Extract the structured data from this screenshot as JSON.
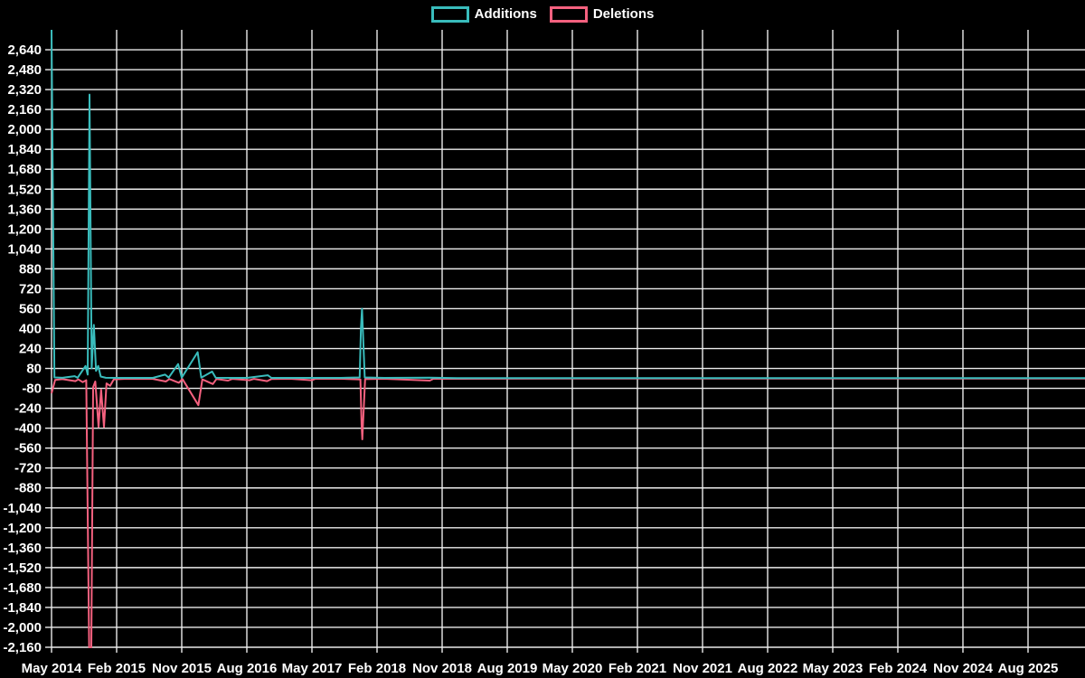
{
  "legend": [
    {
      "label": "Additions"
    },
    {
      "label": "Deletions"
    }
  ],
  "chart_data": {
    "type": "line",
    "title": "",
    "xlabel": "",
    "ylabel": "",
    "legend_position": "top",
    "grid": true,
    "background_color": "#000000",
    "gridline_color": "#ebebeb",
    "text_color": "#ffffff",
    "x_axis": {
      "unit": "months since first tick",
      "tick_months": [
        0,
        9,
        18,
        27,
        36,
        45,
        54,
        63,
        72,
        81,
        90,
        99,
        108,
        117,
        126,
        135
      ],
      "tick_labels": [
        "May 2014",
        "Feb 2015",
        "Nov 2015",
        "Aug 2016",
        "May 2017",
        "Feb 2018",
        "Nov 2018",
        "Aug 2019",
        "May 2020",
        "Feb 2021",
        "Nov 2021",
        "Aug 2022",
        "May 2023",
        "Feb 2024",
        "Nov 2024",
        "Aug 2025"
      ],
      "month_span_rendered": 142.9
    },
    "y_axis": {
      "tick_values": [
        2640,
        2480,
        2320,
        2160,
        2000,
        1840,
        1680,
        1520,
        1360,
        1200,
        1040,
        880,
        720,
        560,
        400,
        240,
        80,
        -80,
        -240,
        -400,
        -560,
        -720,
        -880,
        -1040,
        -1200,
        -1360,
        -1520,
        -1680,
        -1840,
        -2000,
        -2160
      ],
      "tick_step": 160,
      "render_max": 2800,
      "render_min": -2160
    },
    "series": [
      {
        "name": "Additions",
        "color": "#39bcbc",
        "points": [
          [
            0,
            2800
          ],
          [
            0.4,
            8
          ],
          [
            1.5,
            5
          ],
          [
            3.2,
            18
          ],
          [
            3.6,
            5
          ],
          [
            4.7,
            100
          ],
          [
            5.0,
            30
          ],
          [
            5.25,
            2280
          ],
          [
            5.55,
            80
          ],
          [
            5.85,
            430
          ],
          [
            6.15,
            60
          ],
          [
            6.45,
            100
          ],
          [
            6.8,
            15
          ],
          [
            7.5,
            5
          ],
          [
            10,
            4
          ],
          [
            14,
            4
          ],
          [
            15.7,
            30
          ],
          [
            16.2,
            6
          ],
          [
            17.5,
            115
          ],
          [
            18.0,
            6
          ],
          [
            20.2,
            210
          ],
          [
            20.7,
            6
          ],
          [
            22.2,
            55
          ],
          [
            22.7,
            5
          ],
          [
            25,
            4
          ],
          [
            27,
            4
          ],
          [
            29.9,
            25
          ],
          [
            30.4,
            4
          ],
          [
            33,
            4
          ],
          [
            36,
            4
          ],
          [
            40,
            4
          ],
          [
            42.6,
            8
          ],
          [
            42.78,
            405
          ],
          [
            42.92,
            560
          ],
          [
            43.3,
            8
          ],
          [
            46,
            4
          ],
          [
            52.3,
            6
          ],
          [
            56,
            3
          ],
          [
            70,
            3
          ],
          [
            90,
            3
          ],
          [
            110,
            3
          ],
          [
            130,
            3
          ],
          [
            142.9,
            3
          ]
        ]
      },
      {
        "name": "Deletions",
        "color": "#f5617f",
        "points": [
          [
            0,
            -120
          ],
          [
            0.5,
            -12
          ],
          [
            1.5,
            -6
          ],
          [
            3.3,
            -22
          ],
          [
            3.7,
            -8
          ],
          [
            4.3,
            -30
          ],
          [
            4.8,
            -15
          ],
          [
            5.2,
            -2160
          ],
          [
            5.5,
            -2160
          ],
          [
            5.75,
            -70
          ],
          [
            6.05,
            -25
          ],
          [
            6.5,
            -390
          ],
          [
            6.85,
            -90
          ],
          [
            7.25,
            -390
          ],
          [
            7.6,
            -40
          ],
          [
            8.1,
            -60
          ],
          [
            8.6,
            -8
          ],
          [
            10,
            -4
          ],
          [
            14,
            -4
          ],
          [
            15.8,
            -25
          ],
          [
            16.3,
            -5
          ],
          [
            17.6,
            -35
          ],
          [
            18.1,
            -5
          ],
          [
            20.3,
            -215
          ],
          [
            20.85,
            -8
          ],
          [
            22.3,
            -45
          ],
          [
            22.8,
            -5
          ],
          [
            24.4,
            -18
          ],
          [
            25,
            -4
          ],
          [
            27.4,
            -15
          ],
          [
            28,
            -4
          ],
          [
            29.8,
            -22
          ],
          [
            30.4,
            -5
          ],
          [
            33,
            -3
          ],
          [
            36.0,
            -15
          ],
          [
            36.5,
            -3
          ],
          [
            40,
            -3
          ],
          [
            42.7,
            -8
          ],
          [
            42.86,
            -370
          ],
          [
            42.96,
            -490
          ],
          [
            43.35,
            -6
          ],
          [
            46,
            -3
          ],
          [
            52.3,
            -18
          ],
          [
            52.8,
            -3
          ],
          [
            70,
            -2
          ],
          [
            90,
            -2
          ],
          [
            110,
            -2
          ],
          [
            130,
            -2
          ],
          [
            142.9,
            -2
          ]
        ]
      }
    ]
  }
}
